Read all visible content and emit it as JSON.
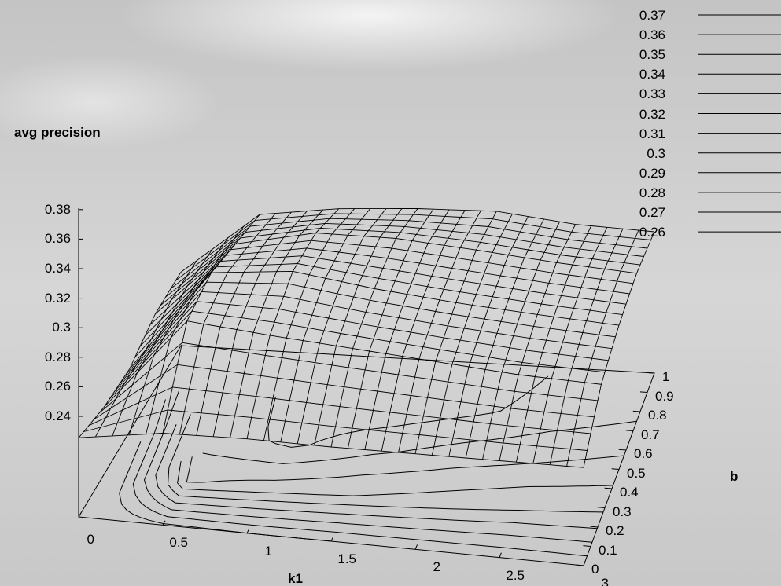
{
  "chart_data": {
    "type": "surface",
    "title": "",
    "xlabel": "k1",
    "ylabel": "b",
    "zlabel": "avg precision",
    "x_ticks": [
      "0",
      "0.5",
      "1",
      "1.5",
      "2",
      "2.5",
      "3"
    ],
    "y_ticks": [
      "0",
      "0.1",
      "0.2",
      "0.3",
      "0.4",
      "0.5",
      "0.6",
      "0.7",
      "0.8",
      "0.9",
      "1"
    ],
    "z_ticks": [
      "0.24",
      "0.26",
      "0.28",
      "0.3",
      "0.32",
      "0.34",
      "0.36",
      "0.38"
    ],
    "xlim": [
      0,
      3
    ],
    "ylim": [
      0,
      1
    ],
    "zlim": [
      0.24,
      0.38
    ],
    "contour_levels": [
      "0.37",
      "0.36",
      "0.35",
      "0.34",
      "0.33",
      "0.32",
      "0.31",
      "0.3",
      "0.29",
      "0.28",
      "0.27",
      "0.26"
    ],
    "legend_position": "top-right",
    "grid": false,
    "surface": {
      "k1_values": [
        0,
        0.5,
        1,
        1.5,
        2,
        2.5,
        3
      ],
      "b_values": [
        0,
        0.25,
        0.5,
        0.75,
        1
      ],
      "avg_precision": [
        [
          0.268,
          0.262,
          0.262,
          0.278,
          0.283
        ],
        [
          0.278,
          0.341,
          0.355,
          0.352,
          0.349
        ],
        [
          0.28,
          0.335,
          0.362,
          0.368,
          0.36
        ],
        [
          0.28,
          0.33,
          0.352,
          0.368,
          0.365
        ],
        [
          0.281,
          0.325,
          0.345,
          0.362,
          0.367
        ],
        [
          0.282,
          0.32,
          0.34,
          0.355,
          0.358
        ],
        [
          0.283,
          0.318,
          0.336,
          0.35,
          0.355
        ]
      ]
    }
  }
}
